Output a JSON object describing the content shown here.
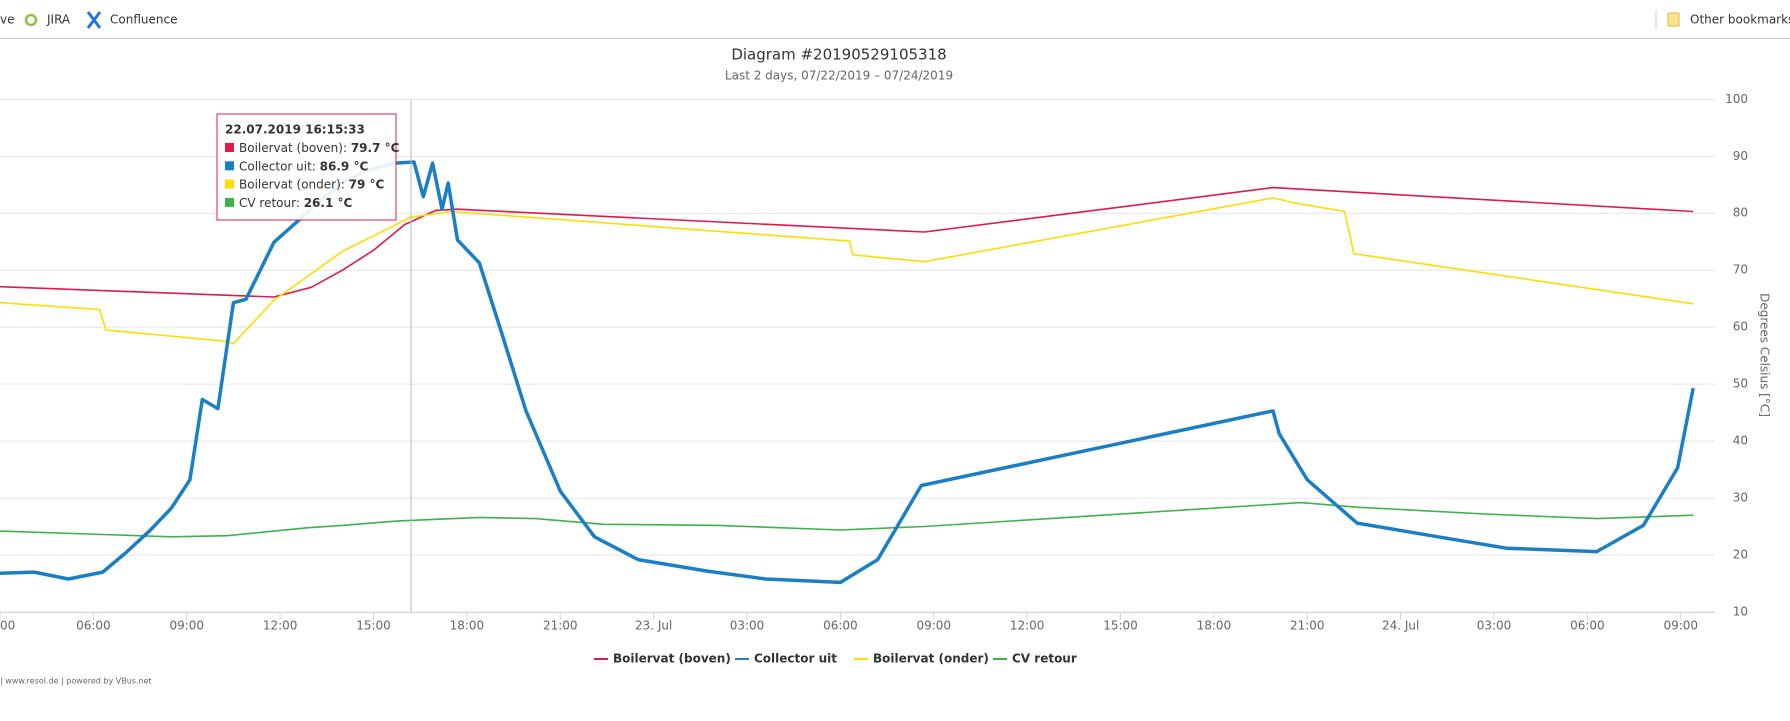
{
  "browser": {
    "bookmarks": [
      "ve",
      "JIRA",
      "Confluence"
    ],
    "other_bookmarks": "Other bookmarks"
  },
  "chart_data": {
    "type": "line",
    "title": "Diagram #20190529105318",
    "subtitle": "Last 2 days, 07/22/2019 – 07/24/2019",
    "y_axis_label": "Degrees Celsius [°C]",
    "xlim": [
      3,
      58.1
    ],
    "xticks": [
      {
        "value": 3,
        "label": "00"
      },
      {
        "value": 6,
        "label": "06:00"
      },
      {
        "value": 9,
        "label": "09:00"
      },
      {
        "value": 12,
        "label": "12:00"
      },
      {
        "value": 15,
        "label": "15:00"
      },
      {
        "value": 18,
        "label": "18:00"
      },
      {
        "value": 21,
        "label": "21:00"
      },
      {
        "value": 24,
        "label": "23. Jul"
      },
      {
        "value": 27,
        "label": "03:00"
      },
      {
        "value": 30,
        "label": "06:00"
      },
      {
        "value": 33,
        "label": "09:00"
      },
      {
        "value": 36,
        "label": "12:00"
      },
      {
        "value": 39,
        "label": "15:00"
      },
      {
        "value": 42,
        "label": "18:00"
      },
      {
        "value": 45,
        "label": "21:00"
      },
      {
        "value": 48,
        "label": "24. Jul"
      },
      {
        "value": 51,
        "label": "03:00"
      },
      {
        "value": 54,
        "label": "06:00"
      },
      {
        "value": 57,
        "label": "09:00"
      }
    ],
    "ylim": [
      10,
      100
    ],
    "yticks": [
      10,
      20,
      30,
      40,
      50,
      60,
      70,
      80,
      90,
      100
    ],
    "grid": true,
    "legend": "bottom",
    "series": [
      {
        "name": "Boilervat (boven)",
        "color": "#e0194b",
        "x": [
          3,
          11.8,
          13,
          14,
          15,
          16,
          17,
          17.7,
          32.7,
          43.9,
          57.4
        ],
        "values": [
          67.1,
          65.3,
          67,
          70,
          73.5,
          78,
          80.5,
          80.7,
          76.7,
          84.5,
          80.3
        ]
      },
      {
        "name": "Collector uit",
        "color": "#1a7fc4",
        "x": [
          3,
          4.1,
          5.2,
          6.3,
          7,
          7.8,
          8.5,
          9.1,
          9.5,
          10,
          10.5,
          10.9,
          11.3,
          11.8,
          12.5,
          13.3,
          14,
          14.7,
          15.7,
          16.3,
          16.6,
          16.9,
          17.2,
          17.4,
          17.7,
          18.4,
          19.1,
          19.9,
          21,
          22.1,
          23.5,
          25.7,
          27.6,
          30,
          31.2,
          32.6,
          43.9,
          44.1,
          45,
          46.6,
          49.2,
          51.4,
          54.3,
          55.8,
          56.9,
          57.4
        ],
        "values": [
          16.8,
          17,
          15.8,
          17,
          20.2,
          24.2,
          28.2,
          33.2,
          47.3,
          45.7,
          64.3,
          64.9,
          69.3,
          74.9,
          78.3,
          82.3,
          85.3,
          87.4,
          88.8,
          89,
          82.9,
          88.8,
          80.7,
          85.3,
          75.3,
          71.3,
          59.3,
          45.3,
          31.2,
          23.2,
          19.2,
          17.2,
          15.8,
          15.2,
          19.2,
          32.2,
          45.3,
          41.3,
          33.2,
          25.6,
          23.2,
          21.2,
          20.6,
          25.2,
          35.3,
          49.3
        ]
      },
      {
        "name": "Boilervat (onder)",
        "color": "#ffdd00",
        "x": [
          3,
          6.2,
          6.4,
          10.3,
          10.5,
          11.8,
          14,
          16.2,
          17.5,
          30.3,
          30.4,
          32.7,
          43.9,
          44.5,
          46.2,
          46.5,
          57.4
        ],
        "values": [
          64.3,
          63.1,
          59.5,
          57.5,
          57.1,
          64.7,
          73.3,
          79.3,
          80.3,
          75.1,
          72.7,
          71.5,
          82.7,
          81.9,
          80.3,
          72.9,
          64.1
        ]
      },
      {
        "name": "CV retour",
        "color": "#3cb34a",
        "x": [
          3,
          6.3,
          8.5,
          10.3,
          12.9,
          14,
          15.8,
          18.4,
          20.2,
          22.4,
          26.1,
          30,
          32.7,
          44.8,
          46.6,
          50.7,
          54.3,
          57.4
        ],
        "values": [
          24.2,
          23.6,
          23.2,
          23.4,
          24.8,
          25.2,
          26,
          26.6,
          26.4,
          25.4,
          25.2,
          24.4,
          25,
          29.2,
          28.4,
          27.2,
          26.4,
          27
        ]
      }
    ],
    "tooltip": {
      "time": "22.07.2019 16:15:33",
      "items": [
        {
          "label": "Boilervat (boven): ",
          "value": "79.7 °C"
        },
        {
          "label": "Collector uit: ",
          "value": "86.9 °C"
        },
        {
          "label": "Boilervat (onder): ",
          "value": "79 °C"
        },
        {
          "label": "CV retour: ",
          "value": "26.1 °C"
        }
      ]
    },
    "footer": "| www.resol.de | powered by VBus.net"
  }
}
